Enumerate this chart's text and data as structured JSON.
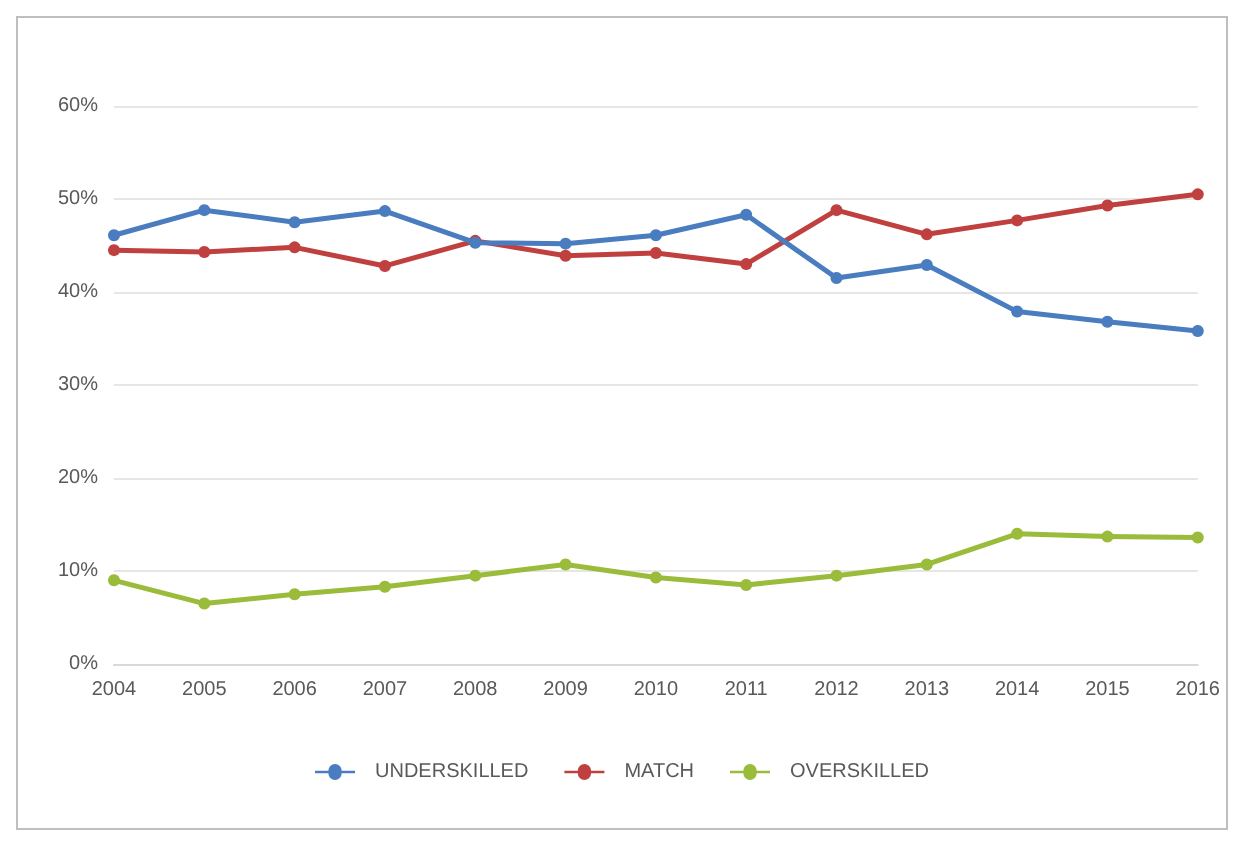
{
  "chart_data": {
    "type": "line",
    "categories": [
      "2004",
      "2005",
      "2006",
      "2007",
      "2008",
      "2009",
      "2010",
      "2011",
      "2012",
      "2013",
      "2014",
      "2015",
      "2016"
    ],
    "series": [
      {
        "name": "UNDERSKILLED",
        "color": "#4a7cc0",
        "values": [
          46.1,
          48.8,
          47.5,
          48.7,
          45.3,
          45.2,
          46.1,
          48.3,
          41.5,
          42.9,
          37.9,
          36.8,
          35.8
        ]
      },
      {
        "name": "MATCH",
        "color": "#c0403f",
        "values": [
          44.5,
          44.3,
          44.8,
          42.8,
          45.5,
          43.9,
          44.2,
          43.0,
          48.8,
          46.2,
          47.7,
          49.3,
          50.5
        ]
      },
      {
        "name": "OVERSKILLED",
        "color": "#9bbb3b",
        "values": [
          9.0,
          6.5,
          7.5,
          8.3,
          9.5,
          10.7,
          9.3,
          8.5,
          9.5,
          10.7,
          14.0,
          13.7,
          13.6
        ]
      }
    ],
    "ylim": [
      0,
      60
    ],
    "yticks": [
      {
        "value": 0,
        "label": "0%"
      },
      {
        "value": 10,
        "label": "10%"
      },
      {
        "value": 20,
        "label": "20%"
      },
      {
        "value": 30,
        "label": "30%"
      },
      {
        "value": 40,
        "label": "40%"
      },
      {
        "value": 50,
        "label": "50%"
      },
      {
        "value": 60,
        "label": "60%"
      }
    ],
    "grid": "y",
    "legend": "bottom",
    "marker": "circle",
    "line_style": "solid"
  }
}
